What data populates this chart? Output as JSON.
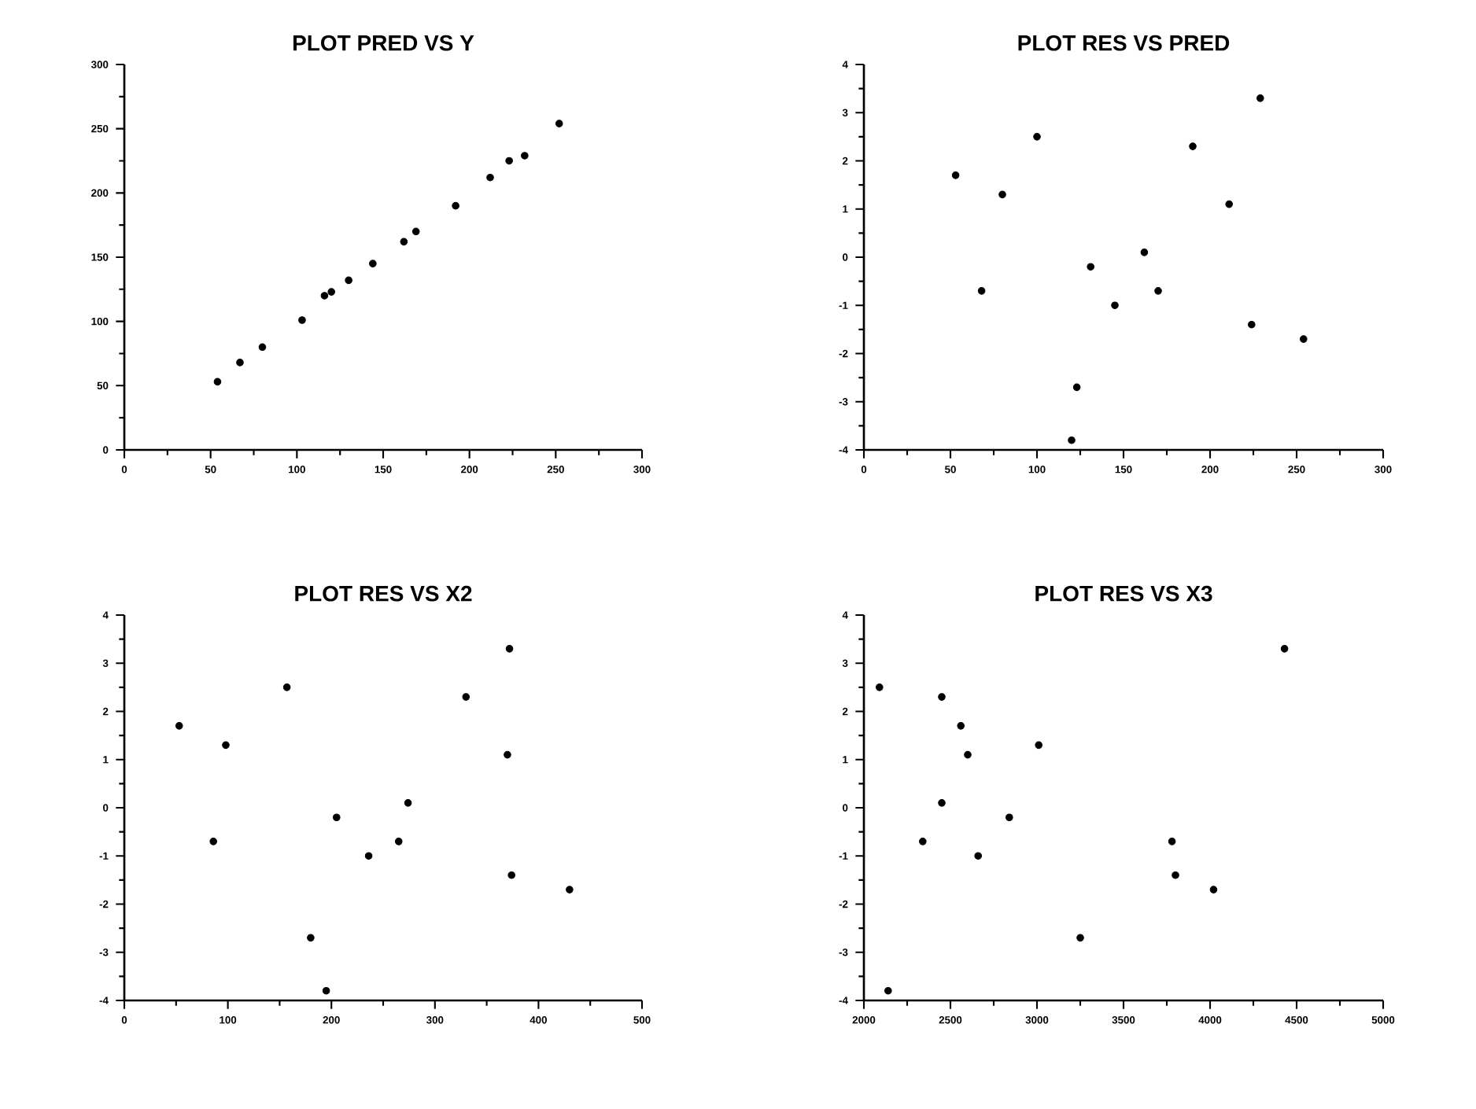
{
  "chart_data": [
    {
      "type": "scatter",
      "title": "PLOT PRED VS Y",
      "marker": "circle",
      "color": "#000000",
      "x": [
        54,
        67,
        80,
        103,
        116,
        120,
        130,
        144,
        162,
        169,
        192,
        212,
        223,
        232,
        252
      ],
      "values": [
        53,
        68,
        80,
        101,
        120,
        123,
        132,
        145,
        162,
        170,
        190,
        212,
        225,
        229,
        254
      ],
      "xlim": [
        0,
        300
      ],
      "ylim": [
        0,
        300
      ],
      "xticks": [
        0,
        50,
        100,
        150,
        200,
        250,
        300
      ],
      "yticks": [
        0,
        50,
        100,
        150,
        200,
        250,
        300
      ]
    },
    {
      "type": "scatter",
      "title": "PLOT RES VS PRED",
      "marker": "circle",
      "color": "#000000",
      "x": [
        53,
        68,
        80,
        100,
        120,
        123,
        131,
        145,
        162,
        170,
        190,
        211,
        224,
        229,
        254
      ],
      "values": [
        1.7,
        -0.7,
        1.3,
        2.5,
        -3.8,
        -2.7,
        -0.2,
        -1.0,
        0.1,
        -0.7,
        2.3,
        1.1,
        -1.4,
        3.3,
        -1.7
      ],
      "xlim": [
        0,
        300
      ],
      "ylim": [
        -4,
        4
      ],
      "xticks": [
        0,
        50,
        100,
        150,
        200,
        250,
        300
      ],
      "yticks": [
        -4,
        -3,
        -2,
        -1,
        0,
        1,
        2,
        3,
        4
      ]
    },
    {
      "type": "scatter",
      "title": "PLOT RES VS X2",
      "marker": "circle",
      "color": "#000000",
      "x": [
        53,
        86,
        98,
        157,
        180,
        195,
        205,
        236,
        265,
        274,
        330,
        370,
        372,
        374,
        430
      ],
      "values": [
        1.7,
        -0.7,
        1.3,
        2.5,
        -2.7,
        -3.8,
        -0.2,
        -1.0,
        -0.7,
        0.1,
        2.3,
        1.1,
        3.3,
        -1.4,
        -1.7
      ],
      "xlim": [
        0,
        500
      ],
      "ylim": [
        -4,
        4
      ],
      "xticks": [
        0,
        100,
        200,
        300,
        400,
        500
      ],
      "yticks": [
        -4,
        -3,
        -2,
        -1,
        0,
        1,
        2,
        3,
        4
      ]
    },
    {
      "type": "scatter",
      "title": "PLOT RES VS X3",
      "marker": "circle",
      "color": "#000000",
      "x": [
        2090,
        2140,
        2340,
        2450,
        2450,
        2560,
        2600,
        2660,
        2840,
        3010,
        3250,
        3780,
        3800,
        4020,
        4430
      ],
      "values": [
        2.5,
        -3.8,
        -0.7,
        2.3,
        0.1,
        1.7,
        1.1,
        -1.0,
        -0.2,
        1.3,
        -2.7,
        -0.7,
        -1.4,
        -1.7,
        3.3
      ],
      "xlim": [
        2000,
        5000
      ],
      "ylim": [
        -4,
        4
      ],
      "xticks": [
        2000,
        2500,
        3000,
        3500,
        4000,
        4500,
        5000
      ],
      "yticks": [
        -4,
        -3,
        -2,
        -1,
        0,
        1,
        2,
        3,
        4
      ]
    }
  ]
}
